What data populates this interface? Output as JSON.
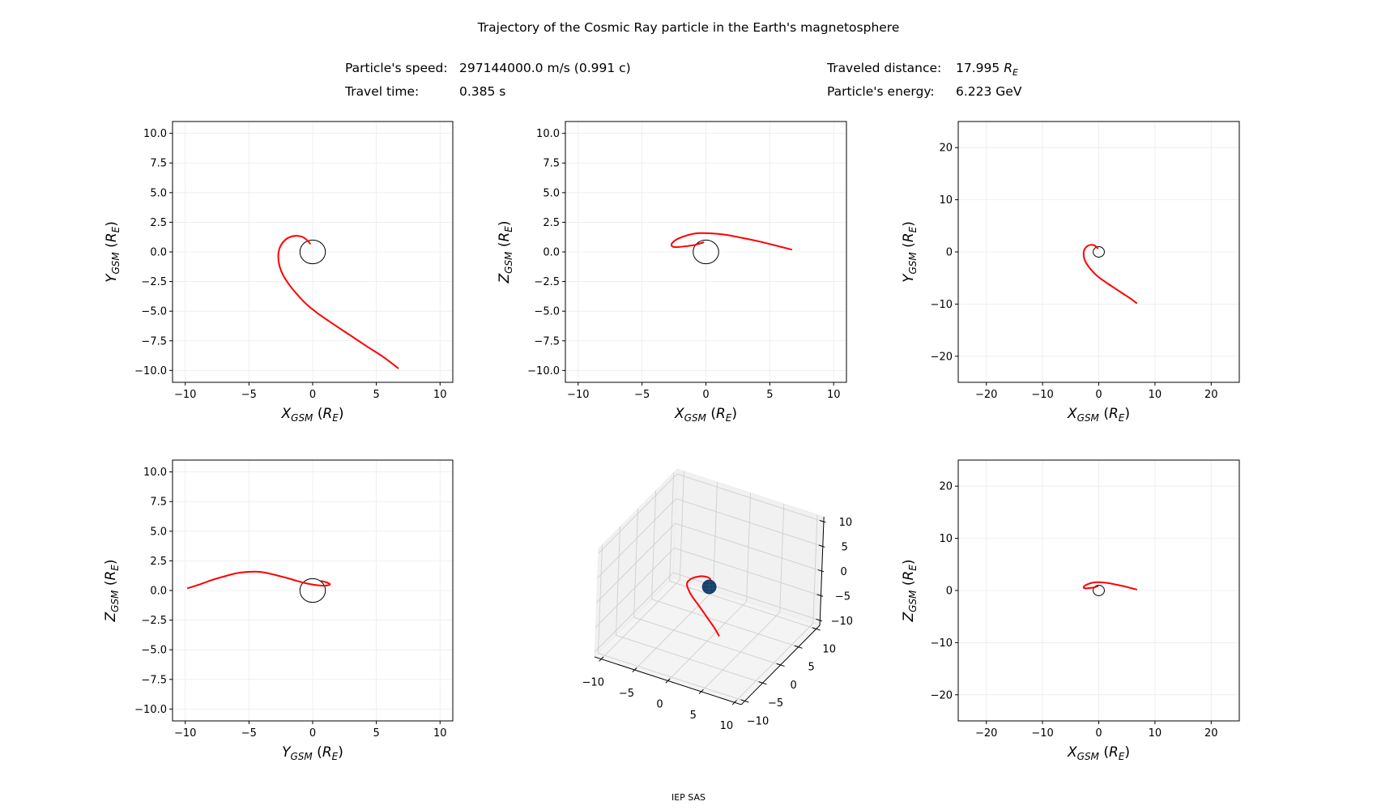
{
  "figure": {
    "title": "Trajectory of the Cosmic Ray particle in the Earth's magnetosphere",
    "footer": "IEP SAS",
    "info": {
      "speed_label": "Particle's speed:",
      "speed_value": "297144000.0 m/s (0.991 c)",
      "time_label": "Travel time:",
      "time_value": "0.385 s",
      "distance_label": "Traveled distance:",
      "distance_value": "17.995",
      "distance_unit": "R",
      "distance_unit_sub": "E",
      "energy_label": "Particle's energy:",
      "energy_value": "6.223 GeV"
    },
    "colors": {
      "trajectory": "#ff0000",
      "earth_outline": "#000000",
      "earth_sphere": "#1f4e79",
      "earth_sphere_mesh": "#0e3050",
      "grid": "#ebebeb",
      "pane_side": "#f1f1f1",
      "pane_floor": "#f4f4f4",
      "pane_grid": "#cfcfcf"
    }
  },
  "chart_data": [
    {
      "type": "line",
      "title": "",
      "xlabel": {
        "var": "X",
        "sub": "GSM",
        "unit": "R",
        "unit_sub": "E"
      },
      "ylabel": {
        "var": "Y",
        "sub": "GSM",
        "unit": "R",
        "unit_sub": "E"
      },
      "xlim": [
        -11,
        11
      ],
      "ylim": [
        -11,
        11
      ],
      "xticks": [
        -10,
        -5,
        0,
        5,
        10
      ],
      "xtick_labels": [
        "−10",
        "−5",
        "0",
        "5",
        "10"
      ],
      "yticks": [
        -10,
        -7.5,
        -5,
        -2.5,
        0,
        2.5,
        5,
        7.5,
        10
      ],
      "ytick_labels": [
        "−10.0",
        "−7.5",
        "−5.0",
        "−2.5",
        "0.0",
        "2.5",
        "5.0",
        "7.5",
        "10.0"
      ],
      "grid": true,
      "trajectory": {
        "x": [
          -0.2,
          -0.5,
          -0.9,
          -1.4,
          -1.9,
          -2.3,
          -2.6,
          -2.7,
          -2.6,
          -2.3,
          -1.75,
          -1.2,
          -0.6,
          0.3,
          1.5,
          2.9,
          4.3,
          5.6,
          6.7
        ],
        "y": [
          0.7,
          1.05,
          1.3,
          1.35,
          1.2,
          0.85,
          0.3,
          -0.4,
          -1.2,
          -2.0,
          -2.9,
          -3.6,
          -4.3,
          -5.1,
          -6.0,
          -7.0,
          -8.0,
          -8.9,
          -9.8
        ]
      },
      "earth_circle": {
        "center": [
          0,
          0
        ],
        "radius": 1
      }
    },
    {
      "type": "line",
      "title": "",
      "xlabel": {
        "var": "X",
        "sub": "GSM",
        "unit": "R",
        "unit_sub": "E"
      },
      "ylabel": {
        "var": "Z",
        "sub": "GSM",
        "unit": "R",
        "unit_sub": "E"
      },
      "xlim": [
        -11,
        11
      ],
      "ylim": [
        -11,
        11
      ],
      "xticks": [
        -10,
        -5,
        0,
        5,
        10
      ],
      "xtick_labels": [
        "−10",
        "−5",
        "0",
        "5",
        "10"
      ],
      "yticks": [
        -10,
        -7.5,
        -5,
        -2.5,
        0,
        2.5,
        5,
        7.5,
        10
      ],
      "ytick_labels": [
        "−10.0",
        "−7.5",
        "−5.0",
        "−2.5",
        "0.0",
        "2.5",
        "5.0",
        "7.5",
        "10.0"
      ],
      "grid": true,
      "trajectory": {
        "x": [
          -0.2,
          -0.5,
          -0.9,
          -1.4,
          -1.9,
          -2.3,
          -2.6,
          -2.7,
          -2.6,
          -2.3,
          -1.75,
          -1.2,
          -0.6,
          0.3,
          1.5,
          2.9,
          4.3,
          5.6,
          6.7
        ],
        "y": [
          0.8,
          0.7,
          0.58,
          0.5,
          0.44,
          0.4,
          0.45,
          0.58,
          0.8,
          1.05,
          1.3,
          1.48,
          1.58,
          1.57,
          1.45,
          1.17,
          0.85,
          0.5,
          0.2
        ]
      },
      "earth_circle": {
        "center": [
          0,
          0
        ],
        "radius": 1
      }
    },
    {
      "type": "line",
      "title": "",
      "xlabel": {
        "var": "X",
        "sub": "GSM",
        "unit": "R",
        "unit_sub": "E"
      },
      "ylabel": {
        "var": "Y",
        "sub": "GSM",
        "unit": "R",
        "unit_sub": "E"
      },
      "xlim": [
        -25,
        25
      ],
      "ylim": [
        -25,
        25
      ],
      "xticks": [
        -20,
        -10,
        0,
        10,
        20
      ],
      "xtick_labels": [
        "−20",
        "−10",
        "0",
        "10",
        "20"
      ],
      "yticks": [
        -20,
        -10,
        0,
        10,
        20
      ],
      "ytick_labels": [
        "−20",
        "−10",
        "0",
        "10",
        "20"
      ],
      "grid": true,
      "trajectory": {
        "x": [
          -0.2,
          -0.5,
          -0.9,
          -1.4,
          -1.9,
          -2.3,
          -2.6,
          -2.7,
          -2.6,
          -2.3,
          -1.75,
          -1.2,
          -0.6,
          0.3,
          1.5,
          2.9,
          4.3,
          5.6,
          6.7
        ],
        "y": [
          0.7,
          1.05,
          1.3,
          1.35,
          1.2,
          0.85,
          0.3,
          -0.4,
          -1.2,
          -2.0,
          -2.9,
          -3.6,
          -4.3,
          -5.1,
          -6.0,
          -7.0,
          -8.0,
          -8.9,
          -9.8
        ]
      },
      "earth_circle": {
        "center": [
          0,
          0
        ],
        "radius": 1
      }
    },
    {
      "type": "line",
      "title": "",
      "xlabel": {
        "var": "Y",
        "sub": "GSM",
        "unit": "R",
        "unit_sub": "E"
      },
      "ylabel": {
        "var": "Z",
        "sub": "GSM",
        "unit": "R",
        "unit_sub": "E"
      },
      "xlim": [
        -11,
        11
      ],
      "ylim": [
        -11,
        11
      ],
      "xticks": [
        -10,
        -5,
        0,
        5,
        10
      ],
      "xtick_labels": [
        "−10",
        "−5",
        "0",
        "5",
        "10"
      ],
      "yticks": [
        -10,
        -7.5,
        -5,
        -2.5,
        0,
        2.5,
        5,
        7.5,
        10
      ],
      "ytick_labels": [
        "−10.0",
        "−7.5",
        "−5.0",
        "−2.5",
        "0.0",
        "2.5",
        "5.0",
        "7.5",
        "10.0"
      ],
      "grid": true,
      "trajectory": {
        "x": [
          0.7,
          1.05,
          1.3,
          1.35,
          1.2,
          0.85,
          0.3,
          -0.4,
          -1.2,
          -2.0,
          -2.9,
          -3.6,
          -4.3,
          -5.1,
          -6.0,
          -7.0,
          -8.0,
          -8.9,
          -9.8
        ],
        "y": [
          0.8,
          0.7,
          0.58,
          0.5,
          0.44,
          0.4,
          0.45,
          0.58,
          0.8,
          1.05,
          1.3,
          1.48,
          1.58,
          1.57,
          1.45,
          1.17,
          0.85,
          0.5,
          0.2
        ]
      },
      "earth_circle": {
        "center": [
          0,
          0
        ],
        "radius": 1
      }
    },
    {
      "type": "line3d",
      "title": "",
      "xlim": [
        -11,
        11
      ],
      "ylim": [
        -11,
        11
      ],
      "zlim": [
        -11,
        11
      ],
      "xticks": [
        -10,
        -5,
        0,
        5,
        10
      ],
      "xtick_labels": [
        "−10",
        "−5",
        "0",
        "5",
        "10"
      ],
      "yticks": [
        -10,
        -5,
        0,
        5,
        10
      ],
      "ytick_labels": [
        "−10",
        "−5",
        "0",
        "5",
        "10"
      ],
      "zticks": [
        -10,
        -5,
        0,
        5,
        10
      ],
      "ztick_labels": [
        "−10",
        "−5",
        "0",
        "5",
        "10"
      ],
      "grid": true,
      "trajectory": {
        "x": [
          -0.2,
          -0.5,
          -0.9,
          -1.4,
          -1.9,
          -2.3,
          -2.6,
          -2.7,
          -2.6,
          -2.3,
          -1.75,
          -1.2,
          -0.6,
          0.3,
          1.5,
          2.9,
          4.3,
          5.6,
          6.7
        ],
        "y": [
          0.7,
          1.05,
          1.3,
          1.35,
          1.2,
          0.85,
          0.3,
          -0.4,
          -1.2,
          -2.0,
          -2.9,
          -3.6,
          -4.3,
          -5.1,
          -6.0,
          -7.0,
          -8.0,
          -8.9,
          -9.8
        ],
        "z": [
          0.8,
          0.7,
          0.58,
          0.5,
          0.44,
          0.4,
          0.45,
          0.58,
          0.8,
          1.05,
          1.3,
          1.48,
          1.58,
          1.57,
          1.45,
          1.17,
          0.85,
          0.5,
          0.2
        ]
      },
      "earth_sphere": {
        "center": [
          0,
          0,
          0
        ],
        "radius": 1
      }
    },
    {
      "type": "line",
      "title": "",
      "xlabel": {
        "var": "X",
        "sub": "GSM",
        "unit": "R",
        "unit_sub": "E"
      },
      "ylabel": {
        "var": "Z",
        "sub": "GSM",
        "unit": "R",
        "unit_sub": "E"
      },
      "xlim": [
        -25,
        25
      ],
      "ylim": [
        -25,
        25
      ],
      "xticks": [
        -20,
        -10,
        0,
        10,
        20
      ],
      "xtick_labels": [
        "−20",
        "−10",
        "0",
        "10",
        "20"
      ],
      "yticks": [
        -20,
        -10,
        0,
        10,
        20
      ],
      "ytick_labels": [
        "−20",
        "−10",
        "0",
        "10",
        "20"
      ],
      "grid": true,
      "trajectory": {
        "x": [
          -0.2,
          -0.5,
          -0.9,
          -1.4,
          -1.9,
          -2.3,
          -2.6,
          -2.7,
          -2.6,
          -2.3,
          -1.75,
          -1.2,
          -0.6,
          0.3,
          1.5,
          2.9,
          4.3,
          5.6,
          6.7
        ],
        "y": [
          0.8,
          0.7,
          0.58,
          0.5,
          0.44,
          0.4,
          0.45,
          0.58,
          0.8,
          1.05,
          1.3,
          1.48,
          1.58,
          1.57,
          1.45,
          1.17,
          0.85,
          0.5,
          0.2
        ]
      },
      "earth_circle": {
        "center": [
          0,
          0
        ],
        "radius": 1
      }
    }
  ]
}
